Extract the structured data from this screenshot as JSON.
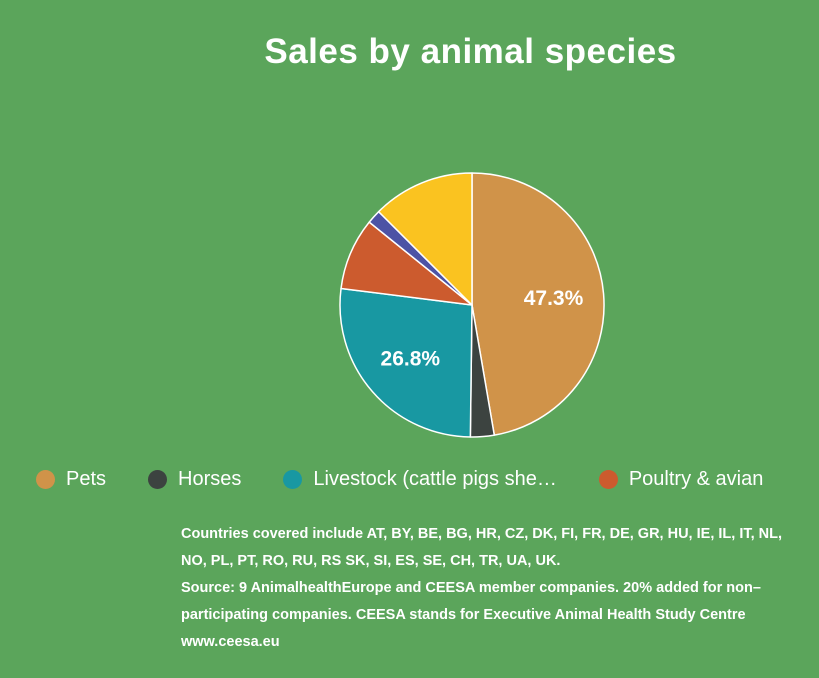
{
  "colors": {
    "background": "#5BA55B",
    "text": "#FFFFFF"
  },
  "chart_data": {
    "type": "pie",
    "title": "Sales by animal species",
    "legend_position": "bottom",
    "direction": "clockwise",
    "start_angle_deg": 0,
    "slices": [
      {
        "label": "Pets",
        "value": 47.3,
        "color": "#D09349",
        "data_label": "47.3%"
      },
      {
        "label": "Horses",
        "value": 2.9,
        "color": "#3C4340",
        "data_label": ""
      },
      {
        "label": "Livestock (cattle pigs she…",
        "value": 26.8,
        "color": "#1898A2",
        "data_label": "26.8%"
      },
      {
        "label": "Poultry & avian",
        "value": 8.8,
        "color": "#CC5B2E",
        "data_label": ""
      },
      {
        "label": "",
        "value": 1.7,
        "color": "#4D53A5",
        "data_label": ""
      },
      {
        "label": "",
        "value": 12.5,
        "color": "#FAC320",
        "data_label": ""
      }
    ],
    "legend_items": [
      "Pets",
      "Horses",
      "Livestock (cattle pigs she…",
      "Poultry & avian"
    ]
  },
  "footer": {
    "countries": "Countries covered include AT, BY, BE, BG, HR, CZ, DK, FI, FR, DE, GR, HU, IE, IL, IT, NL, NO, PL, PT, RO, RU, RS SK, SI, ES, SE, CH, TR, UA, UK.",
    "source_label": "Source",
    "source_body": ": 9 AnimalhealthEurope and CEESA member companies. 20% added for non–participating companies. CEESA stands for Executive Animal Health Study Centre ",
    "link": "www.ceesa.eu"
  }
}
